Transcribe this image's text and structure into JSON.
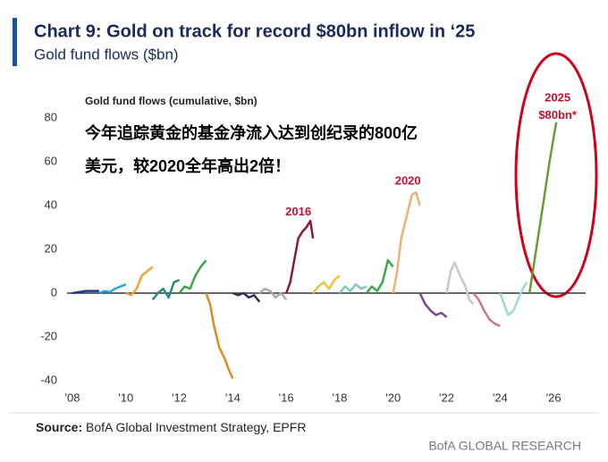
{
  "chart_data": {
    "type": "line",
    "title": "Chart 9: Gold on track for record $80bn inflow in ‘25",
    "subtitle": "Gold fund flows ($bn)",
    "y_label": "Gold fund flows (cumulative, $bn)",
    "annotation_cn": [
      "今年追踪黄金的基金净流入达到创纪录的800亿",
      "美元，较2020全年高出2倍！"
    ],
    "annotations": [
      {
        "text": "2016",
        "x": 2016.45,
        "y": 37
      },
      {
        "text": "2020",
        "x": 2020.55,
        "y": 51
      },
      {
        "text": "2025",
        "x": 2026.15,
        "y": 89
      },
      {
        "text": "$80bn*",
        "x": 2026.15,
        "y": 81
      }
    ],
    "source_label": "Source:",
    "source": "BofA Global Investment Strategy, EPFR",
    "footer": "BofA GLOBAL RESEARCH",
    "xlim": [
      2007.8,
      2027.2
    ],
    "ylim": [
      -40,
      80
    ],
    "xticks": [
      {
        "value": 2008,
        "label": "'08"
      },
      {
        "value": 2010,
        "label": "'10"
      },
      {
        "value": 2012,
        "label": "'12"
      },
      {
        "value": 2014,
        "label": "'14"
      },
      {
        "value": 2016,
        "label": "'16"
      },
      {
        "value": 2018,
        "label": "'18"
      },
      {
        "value": 2020,
        "label": "'20"
      },
      {
        "value": 2022,
        "label": "'22"
      },
      {
        "value": 2024,
        "label": "'24"
      },
      {
        "value": 2026,
        "label": "'26"
      }
    ],
    "yticks": [
      -40,
      -20,
      0,
      20,
      40,
      60,
      80
    ],
    "grid": false,
    "zero_line": true,
    "series": [
      {
        "color": "#1f3c88",
        "x": [
          2008,
          2008.25,
          2008.5,
          2008.75,
          2009
        ],
        "values": [
          0,
          0.5,
          1,
          1,
          1
        ]
      },
      {
        "color": "#2aa6d6",
        "x": [
          2009,
          2009.2,
          2009.4,
          2009.6,
          2009.8,
          2010
        ],
        "values": [
          0,
          1,
          0.5,
          2,
          3,
          4
        ]
      },
      {
        "color": "#f2a33a",
        "x": [
          2010,
          2010.2,
          2010.4,
          2010.6,
          2010.8,
          2011
        ],
        "values": [
          0,
          -1,
          2,
          8,
          10,
          12
        ]
      },
      {
        "color": "#2a8a8a",
        "x": [
          2011,
          2011.2,
          2011.4,
          2011.6,
          2011.8,
          2012
        ],
        "values": [
          -3,
          0,
          2,
          -2,
          5,
          6
        ]
      },
      {
        "color": "#3aa84a",
        "x": [
          2012,
          2012.2,
          2012.4,
          2012.6,
          2012.8,
          2013
        ],
        "values": [
          0,
          3,
          2,
          8,
          12,
          15
        ]
      },
      {
        "color": "#e08a20",
        "x": [
          2013,
          2013.15,
          2013.3,
          2013.5,
          2013.7,
          2013.85,
          2014
        ],
        "values": [
          0,
          -5,
          -15,
          -25,
          -30,
          -35,
          -39
        ]
      },
      {
        "color": "#3a2a5a",
        "x": [
          2014,
          2014.2,
          2014.4,
          2014.6,
          2014.8,
          2015
        ],
        "values": [
          0,
          -1,
          0,
          -2,
          -1,
          -4
        ]
      },
      {
        "color": "#aaaaaa",
        "x": [
          2015,
          2015.2,
          2015.4,
          2015.6,
          2015.8,
          2016
        ],
        "values": [
          0,
          2,
          1,
          -2,
          0,
          -3
        ]
      },
      {
        "color": "#8b1a3a",
        "x": [
          2016,
          2016.15,
          2016.3,
          2016.45,
          2016.6,
          2016.75,
          2016.9,
          2017
        ],
        "values": [
          0,
          5,
          15,
          25,
          28,
          30,
          33,
          25
        ]
      },
      {
        "color": "#f0c040",
        "x": [
          2017,
          2017.2,
          2017.4,
          2017.6,
          2017.8,
          2018
        ],
        "values": [
          0,
          3,
          5,
          2,
          6,
          8
        ]
      },
      {
        "color": "#7fc8c0",
        "x": [
          2018,
          2018.2,
          2018.4,
          2018.6,
          2018.8,
          2019
        ],
        "values": [
          0,
          3,
          1,
          4,
          2,
          3
        ]
      },
      {
        "color": "#3aa84a",
        "x": [
          2019,
          2019.2,
          2019.4,
          2019.6,
          2019.8,
          2020
        ],
        "values": [
          0,
          3,
          1,
          5,
          15,
          12
        ]
      },
      {
        "color": "#f0b070",
        "x": [
          2020,
          2020.15,
          2020.3,
          2020.5,
          2020.7,
          2020.85,
          2021
        ],
        "values": [
          0,
          10,
          25,
          35,
          45,
          46,
          40
        ]
      },
      {
        "color": "#7a4a8a",
        "x": [
          2021,
          2021.2,
          2021.4,
          2021.6,
          2021.8,
          2022
        ],
        "values": [
          0,
          -5,
          -8,
          -10,
          -9,
          -11
        ]
      },
      {
        "color": "#c8c8c8",
        "x": [
          2022,
          2022.15,
          2022.3,
          2022.5,
          2022.7,
          2022.85,
          2023
        ],
        "values": [
          0,
          10,
          14,
          8,
          3,
          -3,
          -5
        ]
      },
      {
        "color": "#c87890",
        "x": [
          2023,
          2023.2,
          2023.4,
          2023.6,
          2023.8,
          2024
        ],
        "values": [
          0,
          -3,
          -8,
          -12,
          -14,
          -15
        ]
      },
      {
        "color": "#9fd8d8",
        "x": [
          2024,
          2024.15,
          2024.3,
          2024.5,
          2024.7,
          2024.85,
          2025
        ],
        "values": [
          0,
          -5,
          -10,
          -8,
          -2,
          2,
          5
        ]
      },
      {
        "color": "#6a9a3a",
        "x": [
          2025.1,
          2025.35,
          2025.6,
          2025.85,
          2026.1
        ],
        "values": [
          0,
          20,
          40,
          60,
          78
        ]
      }
    ]
  }
}
